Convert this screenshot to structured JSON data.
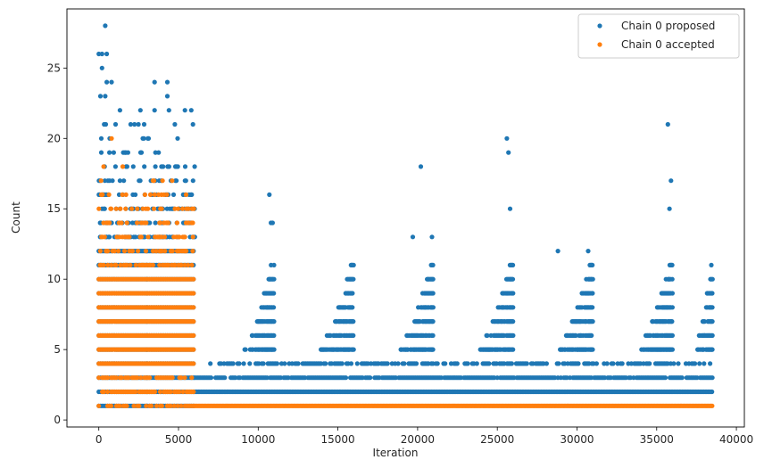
{
  "chart_data": {
    "type": "scatter",
    "title": "",
    "xlabel": "Iteration",
    "ylabel": "Count",
    "xlim": [
      -2000,
      40500
    ],
    "ylim": [
      -0.5,
      29.2
    ],
    "xticks": [
      0,
      5000,
      10000,
      15000,
      20000,
      25000,
      30000,
      35000,
      40000
    ],
    "yticks": [
      0,
      5,
      10,
      15,
      20,
      25
    ],
    "grid": false,
    "legend_position": "top-right",
    "series": [
      {
        "name": "Chain 0 proposed",
        "color": "#1f77b4",
        "marker": "circle",
        "description_regions": [
          {
            "x_range": [
              0,
              6000
            ],
            "y_min": 1,
            "y_max": 22,
            "density": "high"
          },
          {
            "x_range": [
              6000,
              38500
            ],
            "y_min": 1,
            "y_max": 4,
            "density": "high"
          }
        ],
        "outliers": [
          {
            "x": 0,
            "y": 26
          },
          {
            "x": 200,
            "y": 26
          },
          {
            "x": 400,
            "y": 28
          },
          {
            "x": 500,
            "y": 26
          },
          {
            "x": 200,
            "y": 25
          },
          {
            "x": 500,
            "y": 24
          },
          {
            "x": 800,
            "y": 24
          },
          {
            "x": 3500,
            "y": 24
          },
          {
            "x": 4300,
            "y": 24
          },
          {
            "x": 4300,
            "y": 23
          },
          {
            "x": 100,
            "y": 23
          },
          {
            "x": 400,
            "y": 23
          },
          {
            "x": 5400,
            "y": 22
          },
          {
            "x": 5800,
            "y": 22
          },
          {
            "x": 3500,
            "y": 22
          },
          {
            "x": 10700,
            "y": 16
          },
          {
            "x": 10800,
            "y": 14
          },
          {
            "x": 10900,
            "y": 14
          },
          {
            "x": 20200,
            "y": 18
          },
          {
            "x": 19700,
            "y": 13
          },
          {
            "x": 20900,
            "y": 13
          },
          {
            "x": 25600,
            "y": 20
          },
          {
            "x": 25700,
            "y": 19
          },
          {
            "x": 25800,
            "y": 15
          },
          {
            "x": 28800,
            "y": 12
          },
          {
            "x": 30700,
            "y": 12
          },
          {
            "x": 35700,
            "y": 21
          },
          {
            "x": 35900,
            "y": 17
          },
          {
            "x": 35800,
            "y": 15
          },
          {
            "x": 38000,
            "y": 6
          }
        ]
      },
      {
        "name": "Chain 0 accepted",
        "color": "#ff7f0e",
        "marker": "circle",
        "description_regions": [
          {
            "x_range": [
              0,
              6000
            ],
            "y_min": 1,
            "y_max": 17,
            "density": "high"
          },
          {
            "x_range": [
              6000,
              38500
            ],
            "y_min": 1,
            "y_max": 1,
            "density": "high"
          }
        ],
        "outliers": [
          {
            "x": 300,
            "y": 18
          },
          {
            "x": 800,
            "y": 20
          },
          {
            "x": 1500,
            "y": 18
          },
          {
            "x": 3400,
            "y": 17
          },
          {
            "x": 4600,
            "y": 17
          }
        ]
      }
    ]
  }
}
